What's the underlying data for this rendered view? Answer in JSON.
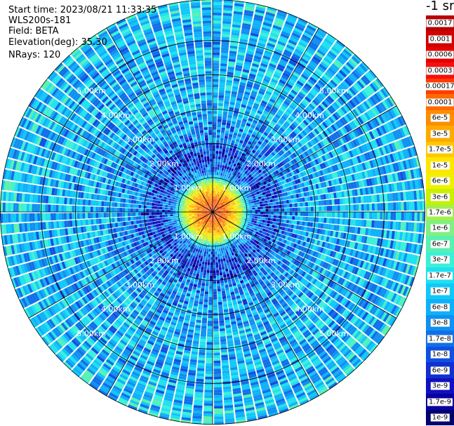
{
  "header": {
    "start_time": "Start time: 2023/08/21 11:33:35",
    "instrument": "WLS200s-181",
    "field": "Field: BETA",
    "elevation": "Elevation(deg): 35.30",
    "nrays": "NRays: 120"
  },
  "colorbar": {
    "title": "-1 sr",
    "entries": [
      {
        "label": "0.0017",
        "color": "#b80000"
      },
      {
        "label": "0.001",
        "color": "#d00000"
      },
      {
        "label": "0.0006",
        "color": "#e60000"
      },
      {
        "label": "0.0003",
        "color": "#f51010"
      },
      {
        "label": "0.00017",
        "color": "#ff3c00"
      },
      {
        "label": "0.0001",
        "color": "#ff6a00"
      },
      {
        "label": "6e-5",
        "color": "#ff8c00"
      },
      {
        "label": "3e-5",
        "color": "#ffaa00"
      },
      {
        "label": "1.7e-5",
        "color": "#ffc800"
      },
      {
        "label": "1e-5",
        "color": "#ffe600"
      },
      {
        "label": "6e-6",
        "color": "#f0f000"
      },
      {
        "label": "3e-6",
        "color": "#c8f000"
      },
      {
        "label": "1.7e-6",
        "color": "#a0f050"
      },
      {
        "label": "1e-6",
        "color": "#80f080"
      },
      {
        "label": "6e-7",
        "color": "#5af0b0"
      },
      {
        "label": "3e-7",
        "color": "#3cf0d8"
      },
      {
        "label": "1.7e-7",
        "color": "#20e0f0"
      },
      {
        "label": "1e-7",
        "color": "#10c8f8"
      },
      {
        "label": "6e-8",
        "color": "#10b0f8"
      },
      {
        "label": "3e-8",
        "color": "#1090f0"
      },
      {
        "label": "1.7e-8",
        "color": "#1070e8"
      },
      {
        "label": "1e-8",
        "color": "#1050e0"
      },
      {
        "label": "6e-9",
        "color": "#1030d0"
      },
      {
        "label": "3e-9",
        "color": "#1010c0"
      },
      {
        "label": "1.7e-9",
        "color": "#0800a0"
      },
      {
        "label": "1e-9",
        "color": "#000070"
      }
    ]
  },
  "chart_data": {
    "type": "heatmap",
    "projection": "polar",
    "title": "",
    "xlabel": "",
    "ylabel": "",
    "grid": true,
    "ring_labels": [
      "1.00km",
      "2.00km",
      "3.00km",
      "4.00km",
      "5.00km"
    ],
    "ring_range_km": [
      1,
      2,
      3,
      4,
      5
    ],
    "max_range_km": 6.2,
    "n_rays": 120,
    "azimuth_spokes_deg": [
      0,
      30,
      60,
      90,
      120,
      150,
      180,
      210,
      240,
      270,
      300,
      330
    ],
    "colorscale": "log",
    "value_range": [
      1e-09,
      0.0017
    ],
    "units": "sr^-1",
    "radial_profile": [
      {
        "range_km": 0.0,
        "value": 0.00017
      },
      {
        "range_km": 0.3,
        "value": 0.0001
      },
      {
        "range_km": 0.55,
        "value": 3e-05
      },
      {
        "range_km": 0.75,
        "value": 6e-06
      },
      {
        "range_km": 0.9,
        "value": 1e-06
      },
      {
        "range_km": 1.1,
        "value": 3e-08
      },
      {
        "range_km": 1.6,
        "value": 6e-09
      },
      {
        "range_km": 2.3,
        "value": 3e-08
      },
      {
        "range_km": 3.5,
        "value": 6e-08
      },
      {
        "range_km": 5.0,
        "value": 6e-08
      },
      {
        "range_km": 6.2,
        "value": 1e-07
      }
    ]
  }
}
